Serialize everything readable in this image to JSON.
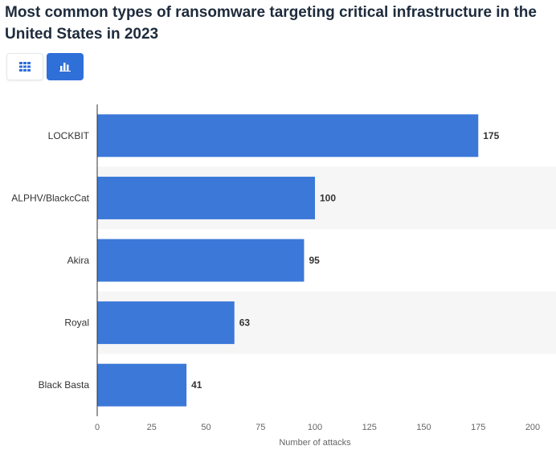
{
  "header": {
    "title": "Most common types of ransomware targeting critical infrastructure in the United States in 2023"
  },
  "view_toggle": {
    "table_icon": "grid-table-icon",
    "chart_icon": "bar-chart-icon",
    "active": "chart"
  },
  "colors": {
    "bar": "#3b78d8",
    "band": "#f6f6f6",
    "toggle_active": "#2f6fd8"
  },
  "chart_data": {
    "type": "bar",
    "orientation": "horizontal",
    "title": "Most common types of ransomware targeting critical infrastructure in the United States in 2023",
    "categories": [
      "LOCKBIT",
      "ALPHV/BlackcCat",
      "Akira",
      "Royal",
      "Black Basta"
    ],
    "values": [
      175,
      100,
      95,
      63,
      41
    ],
    "xlabel": "Number of attacks",
    "ylabel": "",
    "xlim": [
      0,
      200
    ],
    "xticks": [
      0,
      25,
      50,
      75,
      100,
      125,
      150,
      175,
      200
    ],
    "grid": false,
    "alternating_bands": true,
    "data_labels": true
  }
}
